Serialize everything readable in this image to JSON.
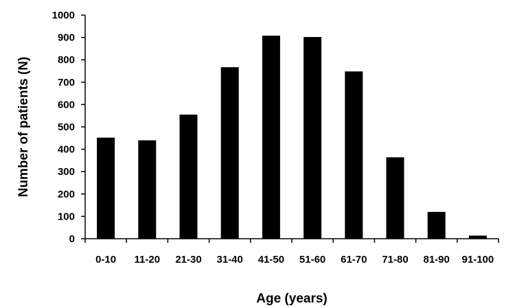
{
  "chart_data": {
    "type": "bar",
    "title": "",
    "xlabel": "Age (years)",
    "ylabel": "Number of patients (N)",
    "categories": [
      "0-10",
      "11-20",
      "21-30",
      "31-40",
      "41-50",
      "51-60",
      "61-70",
      "71-80",
      "81-90",
      "91-100"
    ],
    "values": [
      452,
      440,
      555,
      767,
      908,
      902,
      748,
      364,
      120,
      14
    ],
    "ylim": [
      0,
      1000
    ],
    "yticks": [
      "0",
      "100",
      "200",
      "300",
      "400",
      "500",
      "600",
      "700",
      "800",
      "900",
      "1000"
    ],
    "grid": false,
    "legend": "none",
    "bar_color": "#000000"
  }
}
